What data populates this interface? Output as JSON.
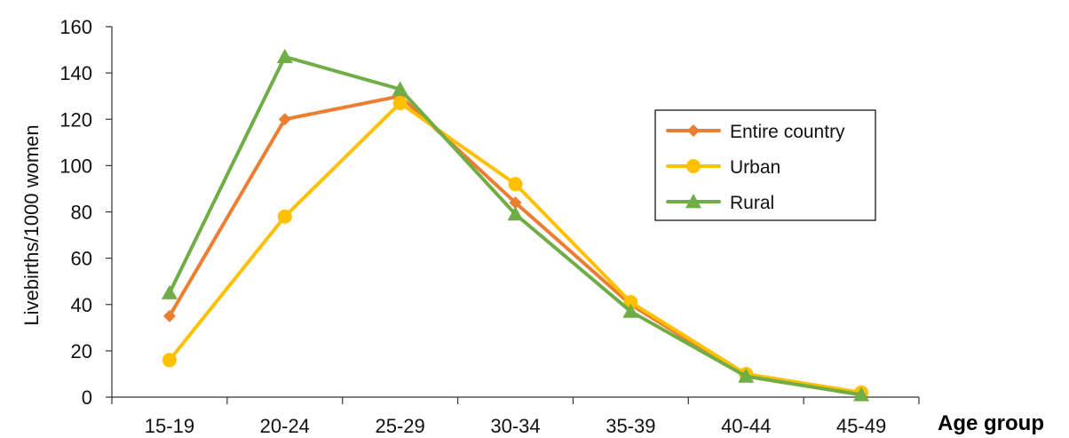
{
  "chart_data": {
    "type": "line",
    "title": "",
    "xlabel": "Age group",
    "ylabel": "Livebirths/1000 women",
    "categories": [
      "15-19",
      "20-24",
      "25-29",
      "30-34",
      "35-39",
      "40-44",
      "45-49"
    ],
    "ylim": [
      0,
      160
    ],
    "yticks": [
      0,
      20,
      40,
      60,
      80,
      100,
      120,
      140,
      160
    ],
    "grid": false,
    "legend_position": "upper-right",
    "series": [
      {
        "name": "Entire country",
        "color": "#ED7D31",
        "marker": "diamond",
        "values": [
          35,
          120,
          130,
          84,
          40,
          9,
          1
        ]
      },
      {
        "name": "Urban",
        "color": "#FFC000",
        "marker": "circle",
        "values": [
          16,
          78,
          127,
          92,
          41,
          10,
          2
        ]
      },
      {
        "name": "Rural",
        "color": "#70AD47",
        "marker": "triangle",
        "values": [
          45,
          147,
          133,
          79,
          37,
          9,
          1
        ]
      }
    ]
  }
}
